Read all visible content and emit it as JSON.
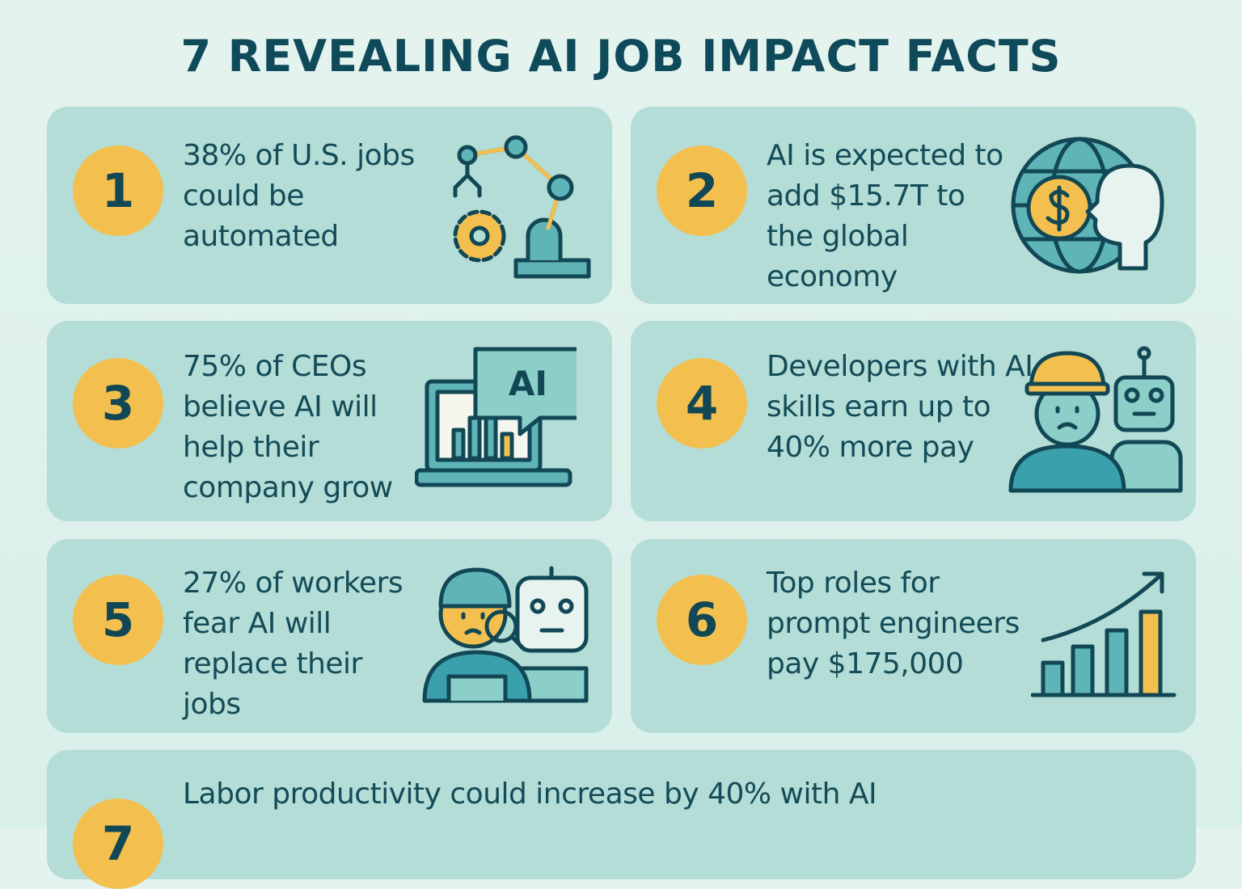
{
  "title": "7 REVEALING AI JOB IMPACT FACTS",
  "facts": [
    {
      "number": "1",
      "text": "38% of U.S. jobs could be automated"
    },
    {
      "number": "2",
      "text": "AI is expected to add $15.7T to the global economy"
    },
    {
      "number": "3",
      "text": "75% of CEOs believe AI will help their company grow"
    },
    {
      "number": "4",
      "text": "Developers with AI skills earn up to 40% more pay"
    },
    {
      "number": "5",
      "text": "27% of workers fear AI will replace their jobs"
    },
    {
      "number": "6",
      "text": "Top roles for prompt engineers pay $175,000"
    },
    {
      "number": "7",
      "text": "Labor productivity could increase by 40% with AI"
    }
  ]
}
